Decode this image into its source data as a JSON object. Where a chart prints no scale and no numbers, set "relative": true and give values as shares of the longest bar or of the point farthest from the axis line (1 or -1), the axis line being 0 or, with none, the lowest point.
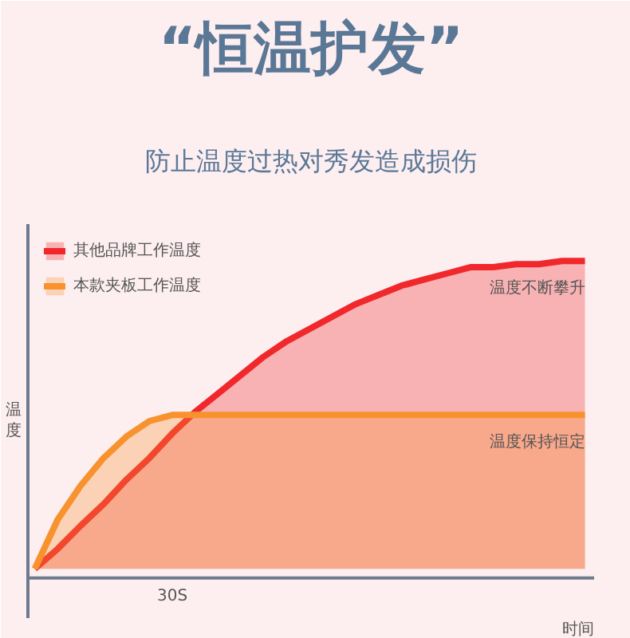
{
  "chart_data": {
    "type": "area",
    "title": "“恒温护发”",
    "subtitle": "防止温度过热对秀发造成损伤",
    "xlabel": "时间",
    "ylabel": "温度",
    "relative": true,
    "categories": [
      null,
      null,
      null,
      null,
      null,
      null,
      null,
      null,
      null,
      null,
      null,
      null,
      null,
      null,
      null,
      null,
      null,
      null,
      null,
      null,
      null,
      null,
      null,
      null,
      null
    ],
    "series": [
      {
        "name": "其他品牌工作温度",
        "color": "#f0282c",
        "values": [
          0,
          0.065,
          0.14,
          0.21,
          0.29,
          0.36,
          0.44,
          0.51,
          0.57,
          0.63,
          0.69,
          0.74,
          0.78,
          0.82,
          0.86,
          0.89,
          0.92,
          0.94,
          0.96,
          0.98,
          0.98,
          0.99,
          0.99,
          1,
          1
        ]
      },
      {
        "name": "本款夹板工作温度",
        "color": "#f7922e",
        "values": [
          0,
          0.16,
          0.27,
          0.36,
          0.43,
          0.48,
          0.5,
          0.5,
          0.5,
          0.5,
          0.5,
          0.5,
          0.5,
          0.5,
          0.5,
          0.5,
          0.5,
          0.5,
          0.5,
          0.5,
          0.5,
          0.5,
          0.5,
          0.5,
          0.5
        ]
      }
    ],
    "annotations": [
      "温度不断攀升",
      "温度保持恒定",
      "30S"
    ],
    "legend": "top left"
  }
}
